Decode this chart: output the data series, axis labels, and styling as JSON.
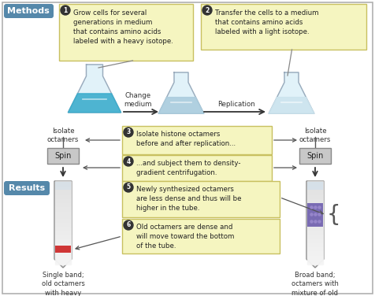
{
  "bg_color": "#f0ede4",
  "border_color": "#b0b0b0",
  "methods_label": "Methods",
  "methods_label_bg": "#5588aa",
  "results_label": "Results",
  "results_label_bg": "#5588aa",
  "step1_text": "Grow cells for several\ngenerations in medium\nthat contains amino acids\nlabeled with a heavy isotope.",
  "step2_text": "Transfer the cells to a medium\nthat contains amino acids\nlabeled with a light isotope.",
  "step3_text": "Isolate histone octamers\nbefore and after replication...",
  "step4_text": "...and subject them to density-\ngradient centrifugation.",
  "step5_text": "Newly synthesized octamers\nare less dense and thus will be\nhigher in the tube.",
  "step6_text": "Old octamers are dense and\nwill move toward the bottom\nof the tube.",
  "change_medium": "Change\nmedium",
  "replication": "Replication",
  "isolate_left": "Isolate\noctamers",
  "isolate_right": "Isolate\noctamers",
  "spin_left": "Spin",
  "spin_right": "Spin",
  "result_left": "Single band;\nold octamers\nwith heavy\namino acids",
  "result_right": "Broad band;\noctamers with\nmixture of old\nand new histones\n(heavy and light\namino acids)",
  "note_box_color": "#f5f5c0",
  "note_box_edge": "#c8c060",
  "flask1_liquid": "#3aaccc",
  "flask2_liquid": "#aaccdd",
  "flask3_liquid": "#cce4ee",
  "left_band_color": "#cc2222",
  "right_band_color": "#6655aa",
  "right_dot_color": "#9988cc"
}
